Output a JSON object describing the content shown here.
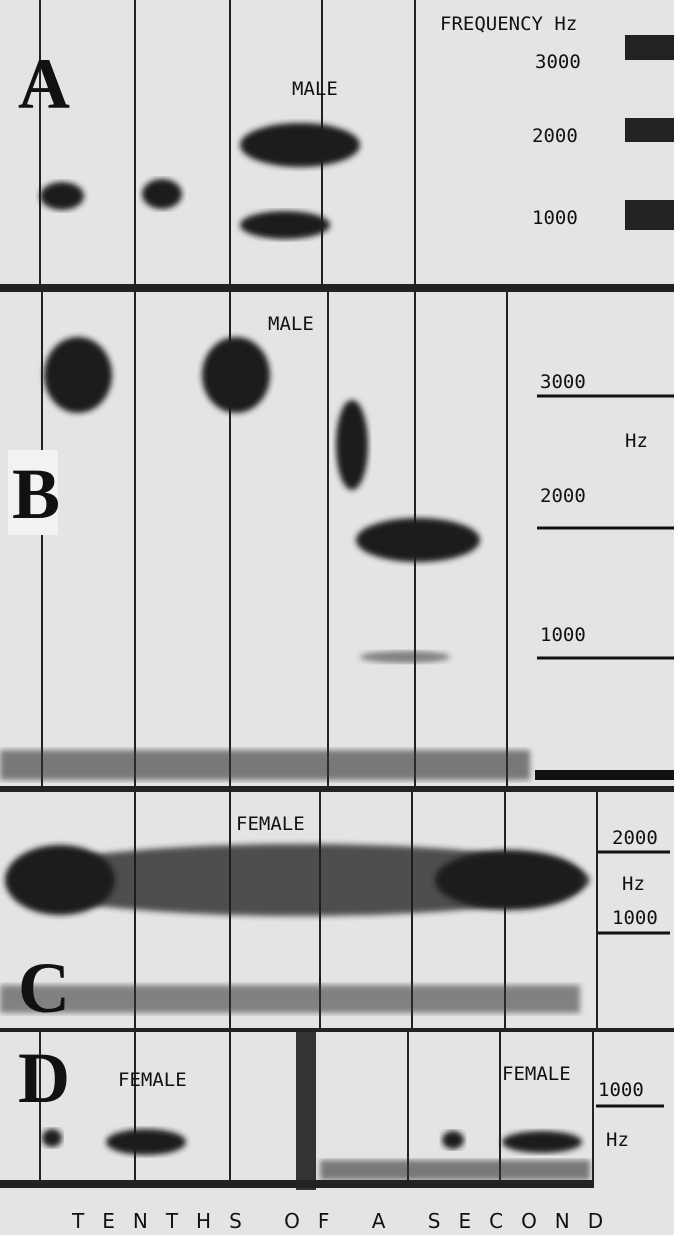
{
  "panels": [
    {
      "label": "A",
      "annotations": [
        "MALE"
      ],
      "scale": [
        "FREQUENCY Hz",
        "3000",
        "2000",
        "1000"
      ]
    },
    {
      "label": "B",
      "annotations": [
        "MALE"
      ],
      "scale": [
        "3000",
        "Hz",
        "2000",
        "1000"
      ]
    },
    {
      "label": "C",
      "annotations": [
        "FEMALE"
      ],
      "scale": [
        "2000",
        "Hz",
        "1000"
      ]
    },
    {
      "label": "D",
      "annotations": [
        "FEMALE",
        "FEMALE"
      ],
      "scale": [
        "1000",
        "Hz"
      ]
    }
  ],
  "footer": "TENTHS OF A SECOND"
}
